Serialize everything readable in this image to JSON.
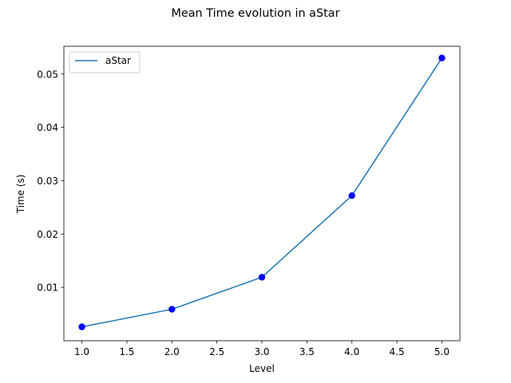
{
  "chart_data": {
    "type": "line",
    "title": "Mean Time evolution in aStar",
    "xlabel": "Level",
    "ylabel": "Time (s)",
    "xlim": [
      0.8,
      5.2
    ],
    "ylim": [
      0.0,
      0.0552
    ],
    "xticks": [
      1.0,
      1.5,
      2.0,
      2.5,
      3.0,
      3.5,
      4.0,
      4.5,
      5.0
    ],
    "xtick_labels": [
      "1.0",
      "1.5",
      "2.0",
      "2.5",
      "3.0",
      "3.5",
      "4.0",
      "4.5",
      "5.0"
    ],
    "yticks": [
      0.01,
      0.02,
      0.03,
      0.04,
      0.05
    ],
    "ytick_labels": [
      "0.01",
      "0.02",
      "0.03",
      "0.04",
      "0.05"
    ],
    "legend_position": "top-left",
    "grid": false,
    "series": [
      {
        "name": "aStar",
        "color": "#1f77b4",
        "marker_color": "#0000ff",
        "x": [
          1.0,
          2.0,
          3.0,
          4.0,
          5.0
        ],
        "y": [
          0.0026,
          0.0059,
          0.0119,
          0.0272,
          0.053
        ]
      }
    ]
  }
}
